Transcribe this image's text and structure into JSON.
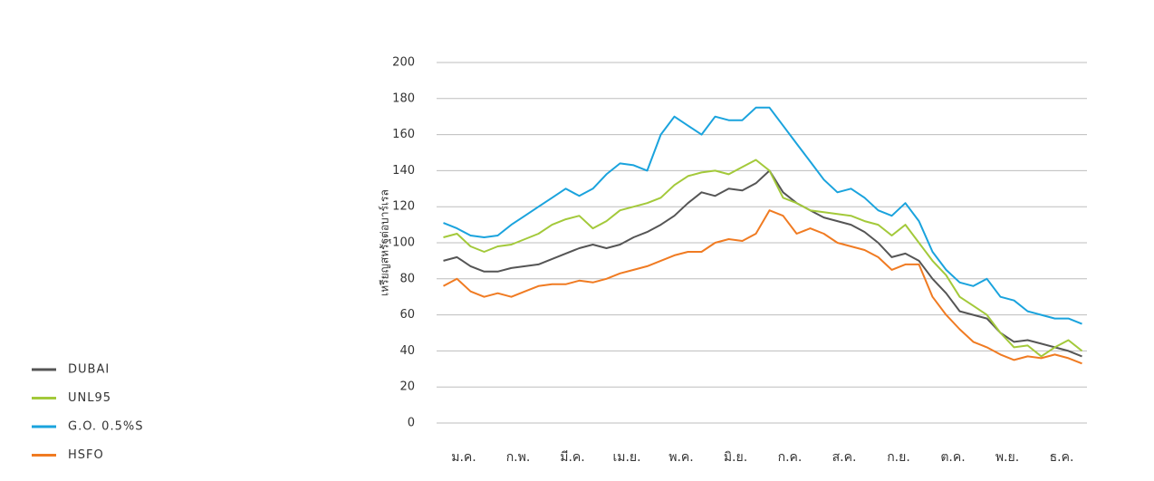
{
  "chart_data": {
    "type": "line",
    "y_label": "เหรียญสหรัฐต่อบาร์เรล",
    "categories": [
      null,
      "ม.ค.",
      null,
      null,
      null,
      "ก.พ.",
      null,
      null,
      null,
      "มี.ค.",
      null,
      null,
      null,
      "เม.ย.",
      null,
      null,
      null,
      "พ.ค.",
      null,
      null,
      null,
      "มิ.ย.",
      null,
      null,
      null,
      "ก.ค.",
      null,
      null,
      null,
      "ส.ค.",
      null,
      null,
      null,
      "ก.ย.",
      null,
      null,
      null,
      "ต.ค.",
      null,
      null,
      null,
      "พ.ย.",
      null,
      null,
      null,
      "ธ.ค.",
      null,
      null
    ],
    "series": [
      {
        "name": "DUBAI",
        "color": "#555555",
        "values": [
          90,
          92,
          87,
          84,
          84,
          86,
          87,
          88,
          91,
          94,
          97,
          99,
          97,
          99,
          103,
          106,
          110,
          115,
          122,
          128,
          126,
          130,
          129,
          133,
          140,
          128,
          122,
          118,
          114,
          112,
          110,
          106,
          100,
          92,
          94,
          90,
          80,
          72,
          62,
          60,
          58,
          50,
          45,
          46,
          44,
          42,
          40,
          37
        ]
      },
      {
        "name": "UNL95",
        "color": "#a3c93a",
        "values": [
          103,
          105,
          98,
          95,
          98,
          99,
          102,
          105,
          110,
          113,
          115,
          108,
          112,
          118,
          120,
          122,
          125,
          132,
          137,
          139,
          140,
          138,
          142,
          146,
          140,
          125,
          122,
          118,
          117,
          116,
          115,
          112,
          110,
          104,
          110,
          100,
          90,
          82,
          70,
          65,
          60,
          50,
          42,
          43,
          37,
          42,
          46,
          40
        ]
      },
      {
        "name": "G.O. 0.5%S",
        "color": "#1aa3dd",
        "values": [
          111,
          108,
          104,
          103,
          104,
          110,
          115,
          120,
          125,
          130,
          126,
          130,
          138,
          144,
          143,
          140,
          160,
          170,
          165,
          160,
          170,
          168,
          168,
          175,
          175,
          165,
          155,
          145,
          135,
          128,
          130,
          125,
          118,
          115,
          122,
          112,
          95,
          85,
          78,
          76,
          80,
          70,
          68,
          62,
          60,
          58,
          58,
          55
        ]
      },
      {
        "name": "HSFO",
        "color": "#f07b22",
        "values": [
          76,
          80,
          73,
          70,
          72,
          70,
          73,
          76,
          77,
          77,
          79,
          78,
          80,
          83,
          85,
          87,
          90,
          93,
          95,
          95,
          100,
          102,
          101,
          105,
          118,
          115,
          105,
          108,
          105,
          100,
          98,
          96,
          92,
          85,
          88,
          88,
          70,
          60,
          52,
          45,
          42,
          38,
          35,
          37,
          36,
          38,
          36,
          33
        ]
      }
    ],
    "ylim": [
      0,
      200
    ],
    "yticks": [
      0,
      20,
      40,
      60,
      80,
      100,
      120,
      140,
      160,
      180,
      200
    ],
    "grid": true,
    "legend": "bottom-left"
  }
}
